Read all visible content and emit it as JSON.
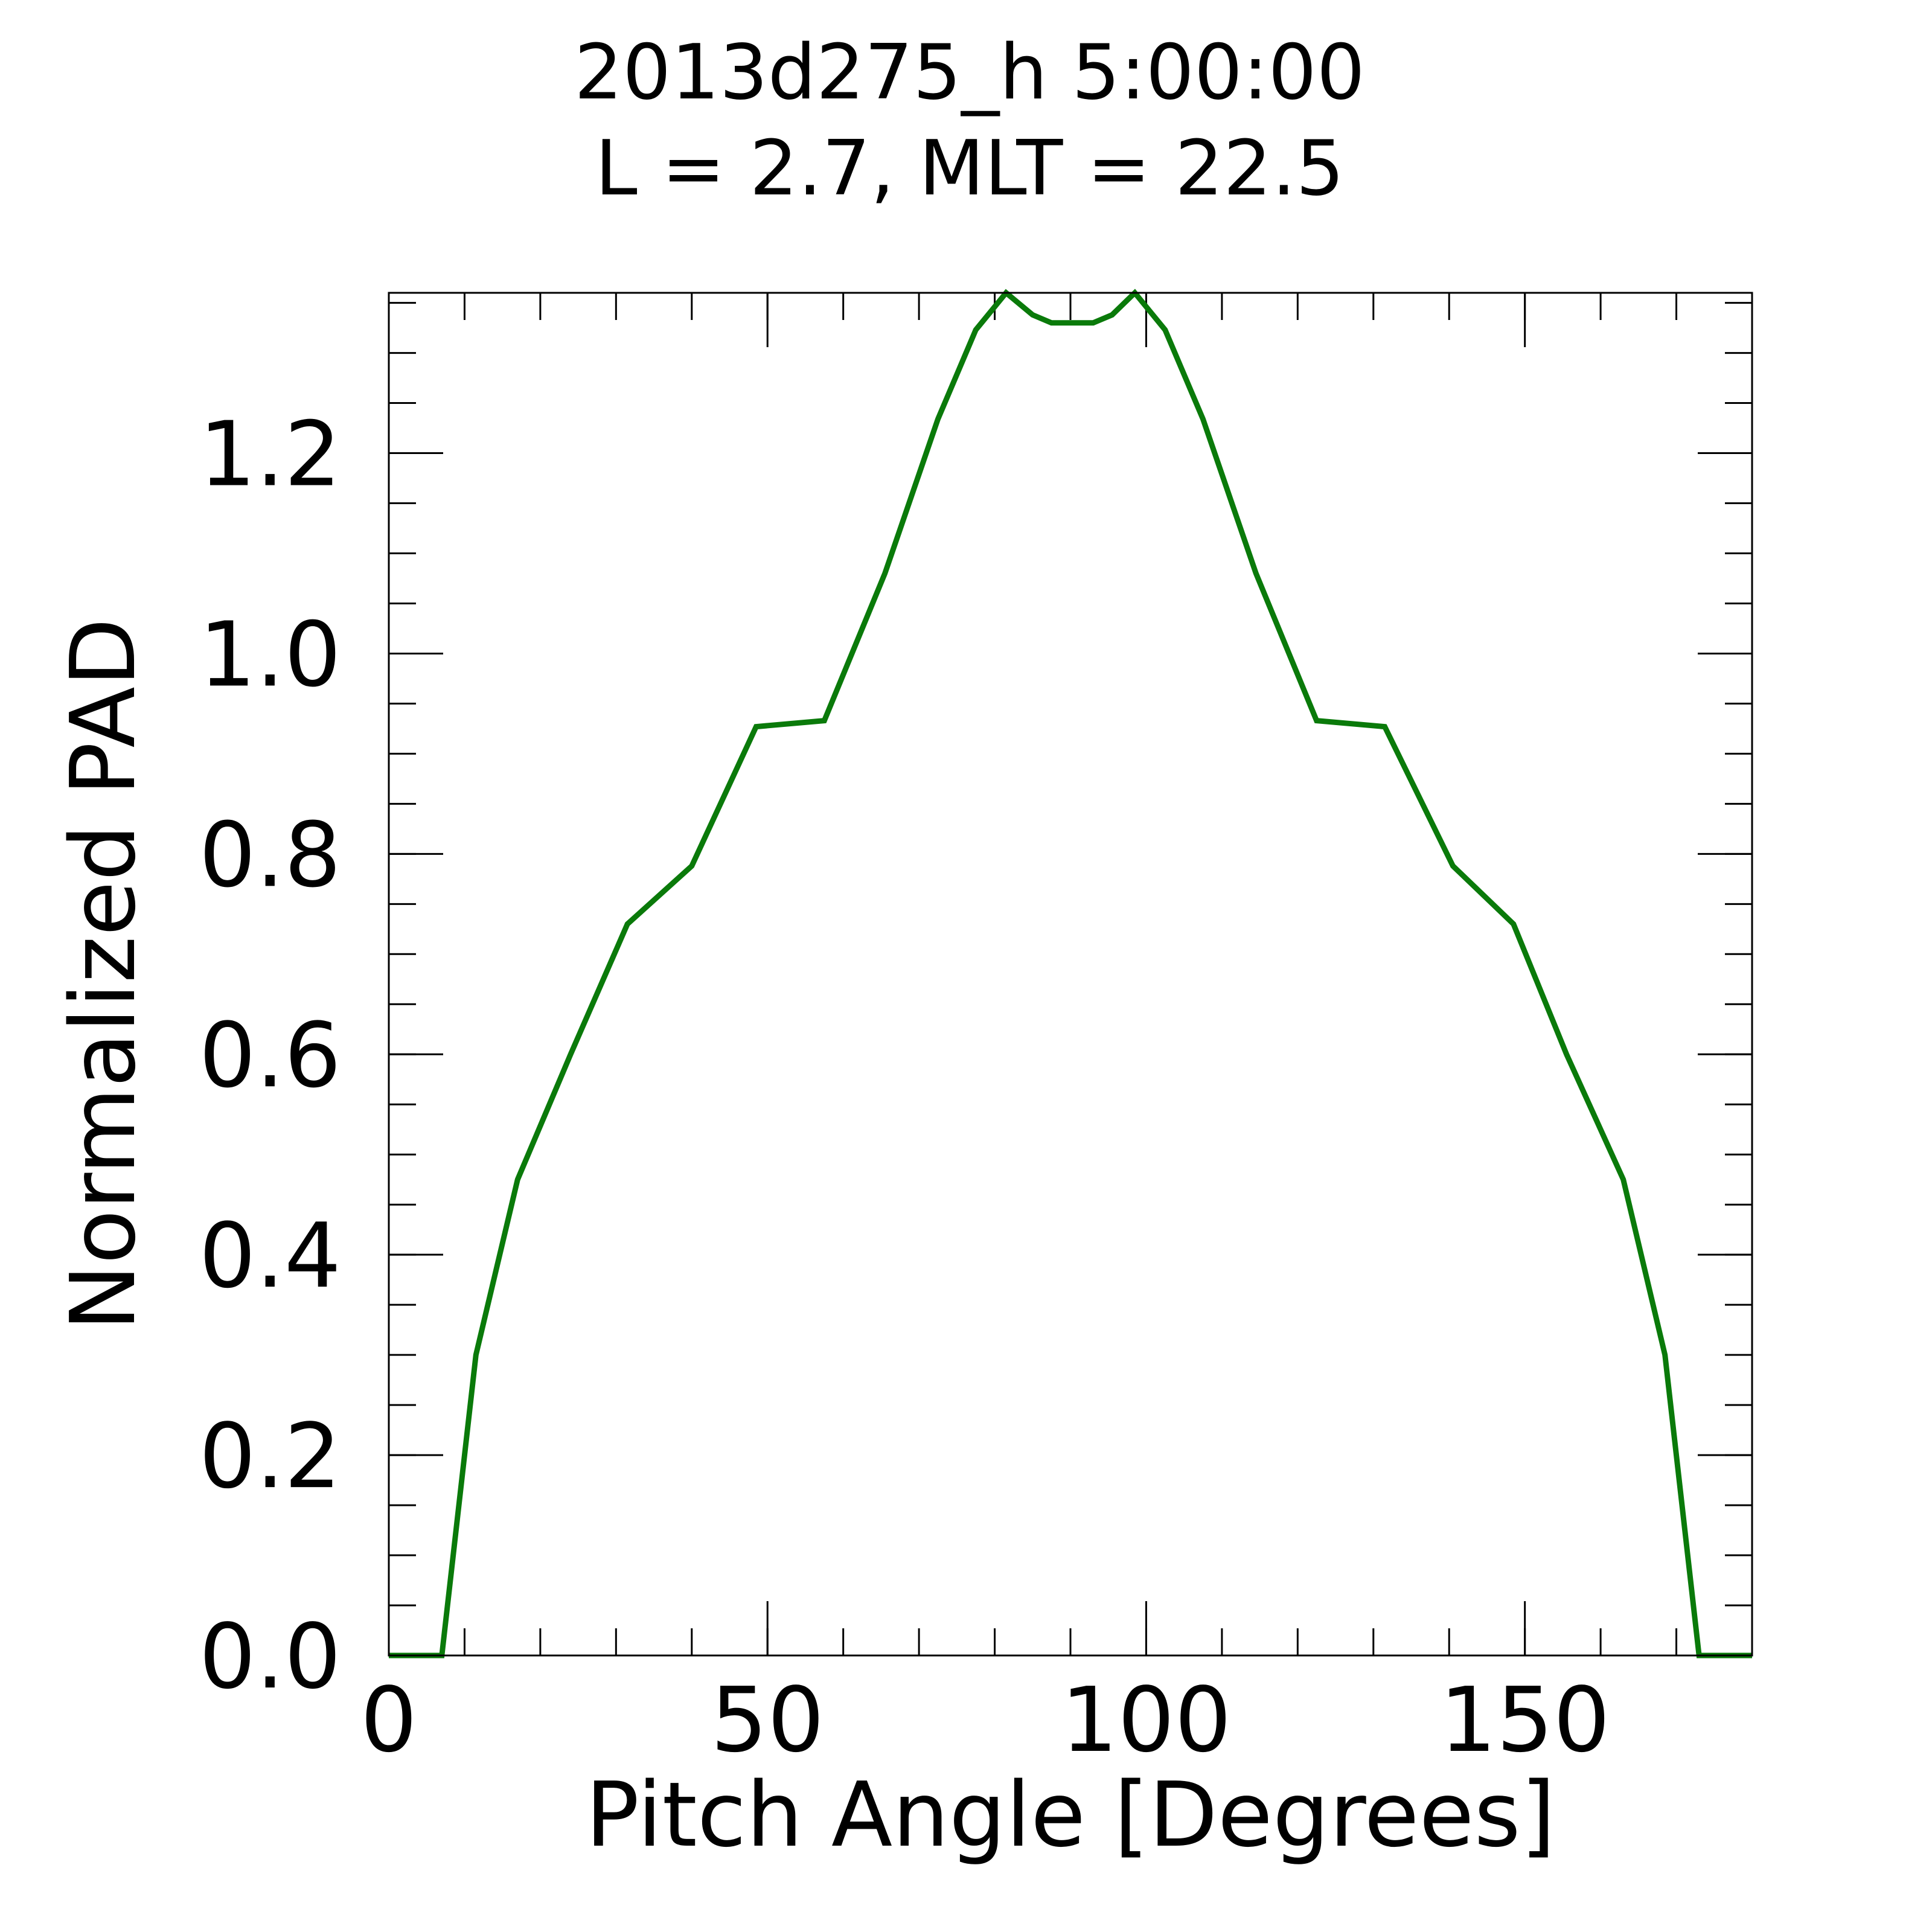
{
  "chart_data": {
    "type": "line",
    "title_line1": "2013d275_h   5:00:00",
    "title_line2": "L = 2.7, MLT = 22.5",
    "xlabel": "Pitch Angle [Degrees]",
    "ylabel": "Normalized PAD",
    "xlim": [
      0,
      180
    ],
    "ylim": [
      0,
      1.36
    ],
    "x_major_ticks": [
      0,
      50,
      100,
      150
    ],
    "x_tick_labels": [
      "0",
      "50",
      "100",
      "150"
    ],
    "x_minor_step": 10,
    "y_major_ticks": [
      0,
      0.2,
      0.4,
      0.6,
      0.8,
      1.0,
      1.2
    ],
    "y_tick_labels": [
      "0.0",
      "0.2",
      "0.4",
      "0.6",
      "0.8",
      "1.0",
      "1.2"
    ],
    "y_minor_step": 0.05,
    "grid": false,
    "series": [
      {
        "color": "#0a7a0a",
        "x": [
          0,
          7,
          11.5,
          17,
          24,
          31.5,
          40,
          48.5,
          57.5,
          65.5,
          72.5,
          77.5,
          81.5,
          85,
          87.5,
          90,
          93,
          95.5,
          98.5,
          102.5,
          107.5,
          114.5,
          122.5,
          131.5,
          140.5,
          148.5,
          155.5,
          163,
          168.5,
          173,
          180
        ],
        "y": [
          0,
          0,
          0.3,
          0.475,
          0.6,
          0.73,
          0.788,
          0.927,
          0.933,
          1.08,
          1.234,
          1.323,
          1.36,
          1.338,
          1.33,
          1.33,
          1.33,
          1.338,
          1.36,
          1.323,
          1.234,
          1.08,
          0.933,
          0.927,
          0.788,
          0.73,
          0.6,
          0.475,
          0.3,
          0,
          0
        ]
      }
    ]
  }
}
